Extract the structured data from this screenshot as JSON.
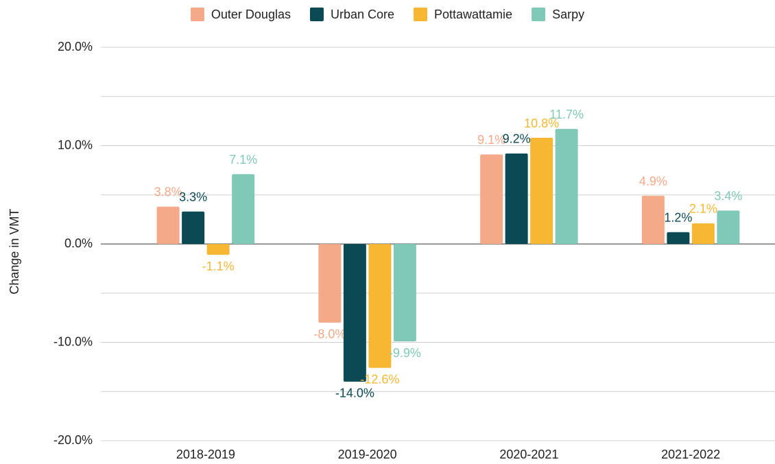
{
  "chart_data": {
    "type": "bar",
    "y_label": "Change in VMT",
    "categories": [
      "2018-2019",
      "2019-2020",
      "2020-2021",
      "2021-2022"
    ],
    "series": [
      {
        "name": "Outer Douglas",
        "color": "#f4a988",
        "values": [
          3.8,
          -8.0,
          9.1,
          4.9
        ],
        "value_labels": [
          "3.8%",
          "-8.0%",
          "9.1%",
          "4.9%"
        ]
      },
      {
        "name": "Urban Core",
        "color": "#0b4a54",
        "values": [
          3.3,
          -14.0,
          9.2,
          1.2
        ],
        "value_labels": [
          "3.3%",
          "-14.0%",
          "9.2%",
          "1.2%"
        ]
      },
      {
        "name": "Pottawattamie",
        "color": "#f7b733",
        "values": [
          -1.1,
          -12.6,
          10.8,
          2.1
        ],
        "value_labels": [
          "-1.1%",
          "-12.6%",
          "10.8%",
          "2.1%"
        ]
      },
      {
        "name": "Sarpy",
        "color": "#80c8b8",
        "values": [
          7.1,
          -9.9,
          11.7,
          3.4
        ],
        "value_labels": [
          "7.1%",
          "-9.9%",
          "11.7%",
          "3.4%"
        ]
      }
    ],
    "ylim": [
      -20,
      20
    ],
    "yticks": [
      {
        "value": -20,
        "label": "-20.0%"
      },
      {
        "value": -10,
        "label": "-10.0%"
      },
      {
        "value": 0,
        "label": "0.0%"
      },
      {
        "value": 10,
        "label": "10.0%"
      },
      {
        "value": 20,
        "label": "20.0%"
      }
    ],
    "y_minor_gridlines": [
      -15,
      -5,
      5,
      15
    ],
    "grid": true,
    "legend": "top"
  }
}
